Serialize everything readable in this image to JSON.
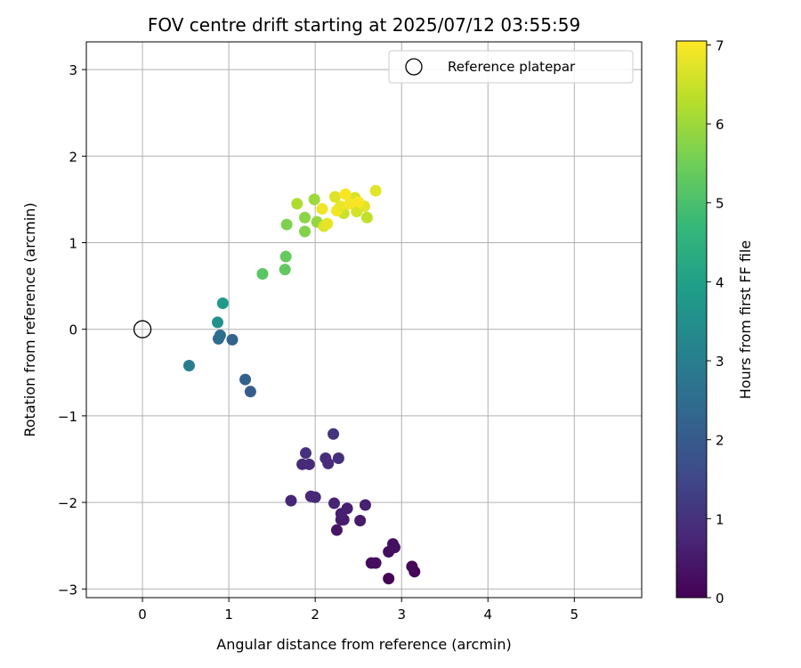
{
  "chart_data": {
    "type": "scatter",
    "title": "FOV centre drift starting at 2025/07/12 03:55:59",
    "xlabel": "Angular distance from reference (arcmin)",
    "ylabel": "Rotation from reference (arcmin)",
    "xlim": [
      -0.65,
      5.78
    ],
    "ylim": [
      -3.1,
      3.32
    ],
    "xticks": [
      0,
      1,
      2,
      3,
      4,
      5
    ],
    "yticks": [
      -3,
      -2,
      -1,
      0,
      1,
      2,
      3
    ],
    "xtick_labels": [
      "0",
      "1",
      "2",
      "3",
      "4",
      "5"
    ],
    "ytick_labels": [
      "−3",
      "−2",
      "−1",
      "0",
      "1",
      "2",
      "3"
    ],
    "grid": true,
    "legend": {
      "label": "Reference platepar",
      "placement": "top-right",
      "marker": "open-circle"
    },
    "reference_point": {
      "x": 0,
      "y": 0
    },
    "colorbar": {
      "label": "Hours from first FF file",
      "colormap": "viridis",
      "range": [
        0,
        7.05
      ],
      "ticks": [
        0,
        1,
        2,
        3,
        4,
        5,
        6,
        7
      ],
      "tick_labels": [
        "0",
        "1",
        "2",
        "3",
        "4",
        "5",
        "6",
        "7"
      ]
    },
    "points": [
      {
        "x": 2.85,
        "y": -2.88,
        "hours": 0.05
      },
      {
        "x": 3.15,
        "y": -2.8,
        "hours": 0.1
      },
      {
        "x": 3.12,
        "y": -2.74,
        "hours": 0.15
      },
      {
        "x": 2.65,
        "y": -2.7,
        "hours": 0.2
      },
      {
        "x": 2.7,
        "y": -2.7,
        "hours": 0.25
      },
      {
        "x": 2.85,
        "y": -2.57,
        "hours": 0.25
      },
      {
        "x": 2.92,
        "y": -2.52,
        "hours": 0.3
      },
      {
        "x": 2.9,
        "y": -2.48,
        "hours": 0.3
      },
      {
        "x": 2.25,
        "y": -2.32,
        "hours": 0.4
      },
      {
        "x": 2.52,
        "y": -2.21,
        "hours": 0.5
      },
      {
        "x": 2.3,
        "y": -2.2,
        "hours": 0.55
      },
      {
        "x": 2.33,
        "y": -2.2,
        "hours": 0.55
      },
      {
        "x": 2.3,
        "y": -2.13,
        "hours": 0.6
      },
      {
        "x": 2.37,
        "y": -2.07,
        "hours": 0.6
      },
      {
        "x": 2.58,
        "y": -2.03,
        "hours": 0.65
      },
      {
        "x": 2.22,
        "y": -2.01,
        "hours": 0.7
      },
      {
        "x": 1.72,
        "y": -1.98,
        "hours": 0.75
      },
      {
        "x": 1.95,
        "y": -1.93,
        "hours": 0.8
      },
      {
        "x": 2.0,
        "y": -1.94,
        "hours": 0.8
      },
      {
        "x": 1.85,
        "y": -1.56,
        "hours": 0.85
      },
      {
        "x": 1.93,
        "y": -1.56,
        "hours": 0.85
      },
      {
        "x": 2.15,
        "y": -1.55,
        "hours": 0.9
      },
      {
        "x": 2.12,
        "y": -1.49,
        "hours": 0.9
      },
      {
        "x": 2.27,
        "y": -1.49,
        "hours": 0.95
      },
      {
        "x": 1.89,
        "y": -1.43,
        "hours": 1.0
      },
      {
        "x": 2.21,
        "y": -1.21,
        "hours": 1.05
      },
      {
        "x": 1.25,
        "y": -0.72,
        "hours": 2.05
      },
      {
        "x": 1.19,
        "y": -0.58,
        "hours": 2.15
      },
      {
        "x": 1.04,
        "y": -0.12,
        "hours": 2.25
      },
      {
        "x": 0.88,
        "y": -0.11,
        "hours": 2.45
      },
      {
        "x": 0.9,
        "y": -0.07,
        "hours": 2.6
      },
      {
        "x": 0.54,
        "y": -0.42,
        "hours": 3.0
      },
      {
        "x": 0.87,
        "y": 0.08,
        "hours": 3.55
      },
      {
        "x": 0.93,
        "y": 0.3,
        "hours": 3.8
      },
      {
        "x": 1.39,
        "y": 0.64,
        "hours": 5.2
      },
      {
        "x": 1.65,
        "y": 0.69,
        "hours": 5.3
      },
      {
        "x": 1.66,
        "y": 0.84,
        "hours": 5.35
      },
      {
        "x": 1.67,
        "y": 1.21,
        "hours": 5.65
      },
      {
        "x": 1.88,
        "y": 1.13,
        "hours": 5.7
      },
      {
        "x": 1.88,
        "y": 1.29,
        "hours": 5.8
      },
      {
        "x": 2.02,
        "y": 1.24,
        "hours": 5.9
      },
      {
        "x": 1.79,
        "y": 1.45,
        "hours": 6.2
      },
      {
        "x": 1.99,
        "y": 1.5,
        "hours": 6.0
      },
      {
        "x": 2.1,
        "y": 1.19,
        "hours": 6.7
      },
      {
        "x": 2.14,
        "y": 1.22,
        "hours": 6.8
      },
      {
        "x": 2.6,
        "y": 1.29,
        "hours": 6.4
      },
      {
        "x": 2.33,
        "y": 1.34,
        "hours": 6.5
      },
      {
        "x": 2.48,
        "y": 1.36,
        "hours": 6.6
      },
      {
        "x": 2.08,
        "y": 1.39,
        "hours": 6.9
      },
      {
        "x": 2.25,
        "y": 1.37,
        "hours": 6.95
      },
      {
        "x": 2.29,
        "y": 1.42,
        "hours": 6.85
      },
      {
        "x": 2.57,
        "y": 1.42,
        "hours": 6.75
      },
      {
        "x": 2.46,
        "y": 1.52,
        "hours": 6.65
      },
      {
        "x": 2.23,
        "y": 1.53,
        "hours": 6.7
      },
      {
        "x": 2.7,
        "y": 1.6,
        "hours": 6.75
      },
      {
        "x": 2.35,
        "y": 1.56,
        "hours": 7.0
      },
      {
        "x": 2.4,
        "y": 1.45,
        "hours": 6.95
      },
      {
        "x": 2.5,
        "y": 1.47,
        "hours": 7.0
      }
    ]
  },
  "colors": {
    "grid": "#b0b0b0",
    "axes": "#000000",
    "background": "#ffffff",
    "viridis_stops": [
      "#440154",
      "#482878",
      "#3e4a89",
      "#31688e",
      "#26828e",
      "#1f9e89",
      "#35b779",
      "#6ece58",
      "#b5de2b",
      "#fde725"
    ]
  }
}
